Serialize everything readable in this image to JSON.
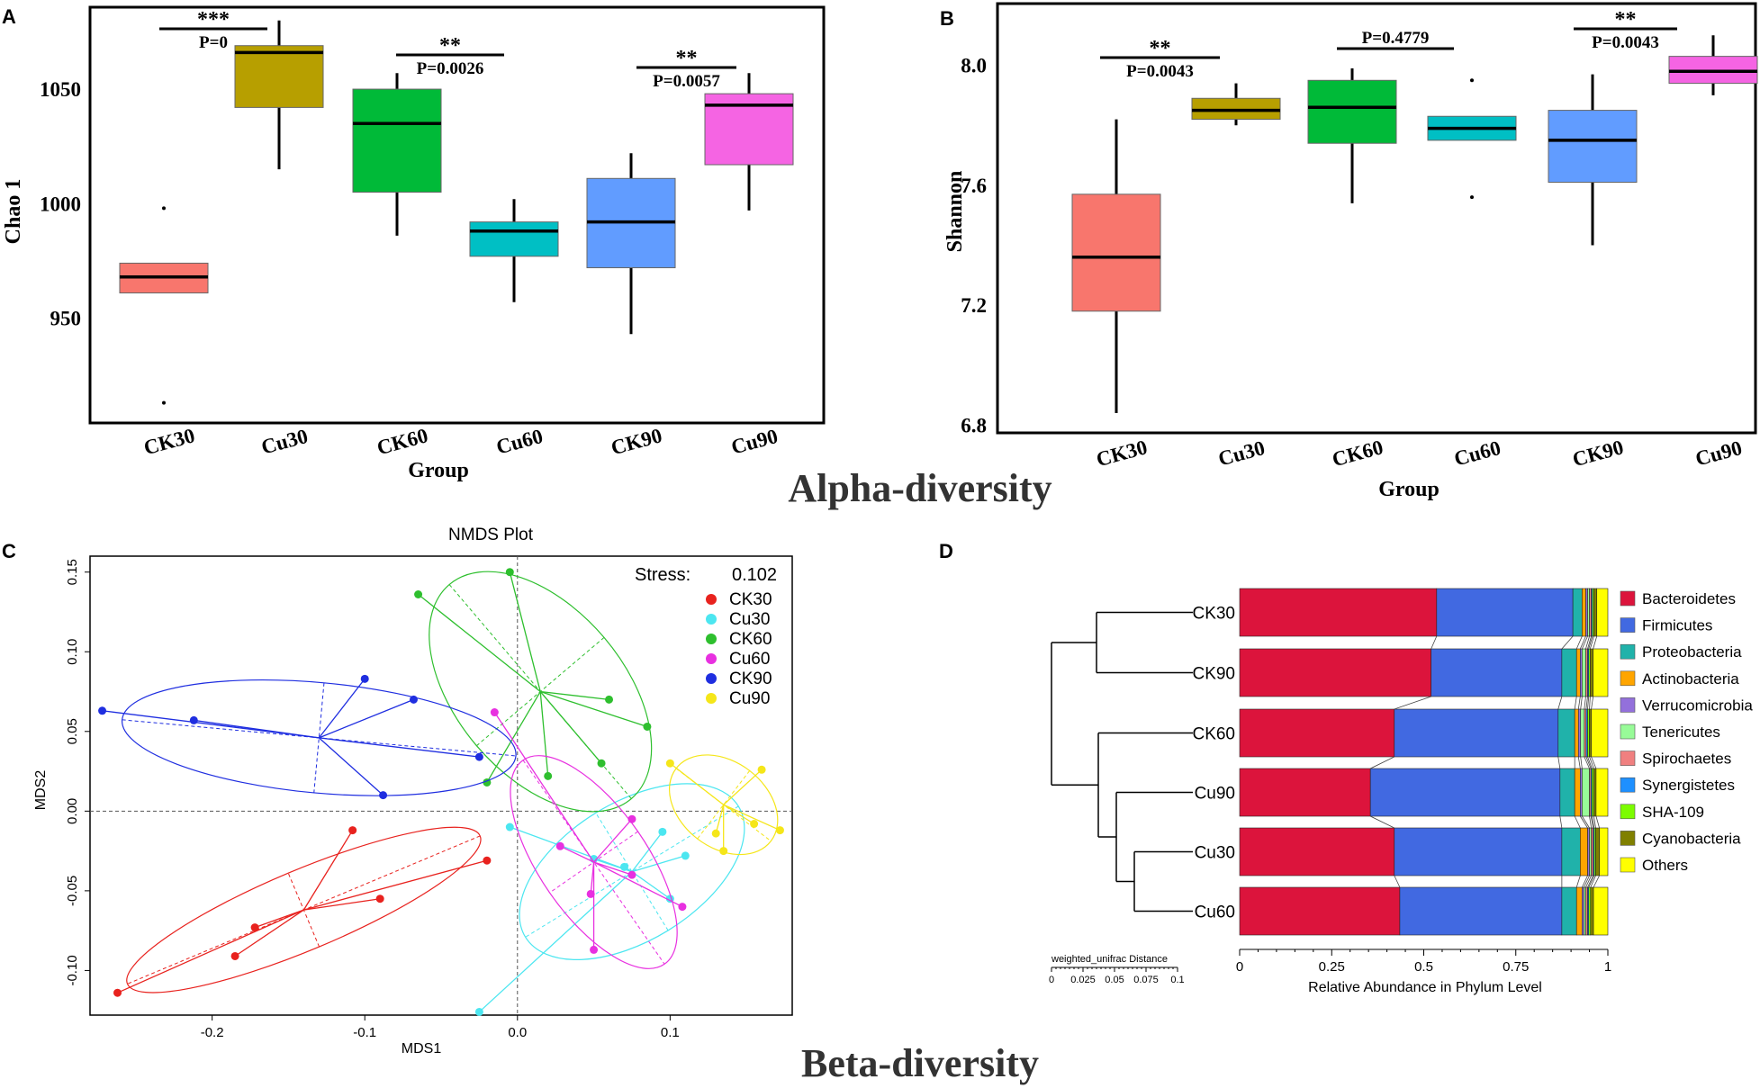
{
  "figure": {
    "section_alpha": "Alpha-diversity",
    "section_beta": "Beta-diversity"
  },
  "chart_data": [
    {
      "panel": "A",
      "type": "box",
      "xlabel": "Group",
      "ylabel": "Chao 1",
      "yticks": [
        950,
        1000,
        1050
      ],
      "ylim": [
        905,
        1085
      ],
      "groups": [
        {
          "name": "CK30",
          "color": "#f8766d",
          "q1": 961,
          "median": 968,
          "q3": 974,
          "whisker_low": 961,
          "whisker_high": 974,
          "outliers": [
            998,
            913
          ]
        },
        {
          "name": "Cu30",
          "color": "#b79f00",
          "q1": 1042,
          "median": 1066,
          "q3": 1069,
          "whisker_low": 1015,
          "whisker_high": 1080,
          "outliers": []
        },
        {
          "name": "CK60",
          "color": "#00ba38",
          "q1": 1005,
          "median": 1035,
          "q3": 1050,
          "whisker_low": 986,
          "whisker_high": 1057,
          "outliers": []
        },
        {
          "name": "Cu60",
          "color": "#00bfc4",
          "q1": 977,
          "median": 988,
          "q3": 992,
          "whisker_low": 957,
          "whisker_high": 1002,
          "outliers": []
        },
        {
          "name": "CK90",
          "color": "#619cff",
          "q1": 972,
          "median": 992,
          "q3": 1011,
          "whisker_low": 943,
          "whisker_high": 1022,
          "outliers": []
        },
        {
          "name": "Cu90",
          "color": "#f564e3",
          "q1": 1017,
          "median": 1043,
          "q3": 1048,
          "whisker_low": 997,
          "whisker_high": 1057,
          "outliers": []
        }
      ],
      "comparisons": [
        {
          "pair": [
            "CK30",
            "Cu30"
          ],
          "stars": "***",
          "p": "P=0"
        },
        {
          "pair": [
            "CK60",
            "Cu60"
          ],
          "stars": "**",
          "p": "P=0.0026"
        },
        {
          "pair": [
            "CK90",
            "Cu90"
          ],
          "stars": "**",
          "p": "P=0.0057"
        }
      ]
    },
    {
      "panel": "B",
      "type": "box",
      "xlabel": "Group",
      "ylabel": "Shannon",
      "yticks": [
        "6.8",
        "7.2",
        "7.6",
        "8.0"
      ],
      "ylim": [
        6.78,
        8.2
      ],
      "groups": [
        {
          "name": "CK30",
          "color": "#f8766d",
          "q1": 7.18,
          "median": 7.36,
          "q3": 7.57,
          "whisker_low": 6.84,
          "whisker_high": 7.82,
          "outliers": []
        },
        {
          "name": "Cu30",
          "color": "#b79f00",
          "q1": 7.82,
          "median": 7.85,
          "q3": 7.89,
          "whisker_low": 7.8,
          "whisker_high": 7.94,
          "outliers": []
        },
        {
          "name": "CK60",
          "color": "#00ba38",
          "q1": 7.74,
          "median": 7.86,
          "q3": 7.95,
          "whisker_low": 7.54,
          "whisker_high": 7.99,
          "outliers": []
        },
        {
          "name": "Cu60",
          "color": "#00bfc4",
          "q1": 7.75,
          "median": 7.79,
          "q3": 7.83,
          "whisker_low": 7.75,
          "whisker_high": 7.83,
          "outliers": [
            7.95,
            7.56
          ]
        },
        {
          "name": "CK90",
          "color": "#619cff",
          "q1": 7.61,
          "median": 7.75,
          "q3": 7.85,
          "whisker_low": 7.4,
          "whisker_high": 7.97,
          "outliers": []
        },
        {
          "name": "Cu90",
          "color": "#f564e3",
          "q1": 7.94,
          "median": 7.98,
          "q3": 8.03,
          "whisker_low": 7.9,
          "whisker_high": 8.1,
          "outliers": []
        }
      ],
      "comparisons": [
        {
          "pair": [
            "CK30",
            "Cu30"
          ],
          "stars": "**",
          "p": "P=0.0043"
        },
        {
          "pair": [
            "CK60",
            "Cu60"
          ],
          "stars": "",
          "p": "P=0.4779"
        },
        {
          "pair": [
            "CK90",
            "Cu90"
          ],
          "stars": "**",
          "p": "P=0.0043"
        }
      ]
    },
    {
      "panel": "C",
      "type": "scatter",
      "title": "NMDS Plot",
      "stress_label": "Stress:",
      "stress": "0.102",
      "xlabel": "MDS1",
      "ylabel": "MDS2",
      "xlim": [
        -0.28,
        0.18
      ],
      "ylim": [
        -0.128,
        0.16
      ],
      "xticks": [
        "-0.2",
        "-0.1",
        "0.0",
        "0.1"
      ],
      "yticks": [
        "-0.10",
        "-0.05",
        "0.00",
        "0.05",
        "0.10",
        "0.15"
      ],
      "groups": [
        {
          "name": "CK30",
          "color": "#e8221e",
          "centroid": [
            -0.14,
            -0.062
          ],
          "points": [
            [
              -0.262,
              -0.114
            ],
            [
              -0.185,
              -0.091
            ],
            [
              -0.172,
              -0.073
            ],
            [
              -0.108,
              -0.012
            ],
            [
              -0.09,
              -0.055
            ],
            [
              -0.02,
              -0.031
            ]
          ]
        },
        {
          "name": "Cu30",
          "color": "#4ce6f0",
          "centroid": [
            0.075,
            -0.038
          ],
          "points": [
            [
              -0.025,
              -0.126
            ],
            [
              -0.005,
              -0.01
            ],
            [
              0.05,
              -0.03
            ],
            [
              0.07,
              -0.035
            ],
            [
              0.095,
              -0.013
            ],
            [
              0.1,
              -0.055
            ],
            [
              0.11,
              -0.028
            ]
          ]
        },
        {
          "name": "CK60",
          "color": "#2ebf2e",
          "centroid": [
            0.015,
            0.075
          ],
          "points": [
            [
              -0.065,
              0.136
            ],
            [
              -0.005,
              0.15
            ],
            [
              0.06,
              0.07
            ],
            [
              0.085,
              0.053
            ],
            [
              0.055,
              0.03
            ],
            [
              0.02,
              0.022
            ],
            [
              -0.02,
              0.018
            ]
          ]
        },
        {
          "name": "Cu60",
          "color": "#e830e0",
          "centroid": [
            0.05,
            -0.032
          ],
          "points": [
            [
              -0.015,
              0.062
            ],
            [
              0.028,
              -0.022
            ],
            [
              0.048,
              -0.052
            ],
            [
              0.05,
              -0.087
            ],
            [
              0.075,
              -0.04
            ],
            [
              0.075,
              -0.005
            ],
            [
              0.108,
              -0.06
            ]
          ]
        },
        {
          "name": "CK90",
          "color": "#1f2ee0",
          "centroid": [
            -0.13,
            0.046
          ],
          "points": [
            [
              -0.272,
              0.063
            ],
            [
              -0.212,
              0.057
            ],
            [
              -0.1,
              0.083
            ],
            [
              -0.068,
              0.07
            ],
            [
              -0.025,
              0.034
            ],
            [
              -0.088,
              0.01
            ]
          ]
        },
        {
          "name": "Cu90",
          "color": "#f5e619",
          "centroid": [
            0.135,
            0.004
          ],
          "points": [
            [
              0.1,
              0.03
            ],
            [
              0.16,
              0.026
            ],
            [
              0.135,
              -0.025
            ],
            [
              0.155,
              -0.008
            ],
            [
              0.172,
              -0.012
            ],
            [
              0.13,
              -0.014
            ]
          ]
        }
      ]
    },
    {
      "panel": "D",
      "type": "stacked-bar",
      "xlabel": "Relative Abundance in Phylum Level",
      "xticks": [
        "0",
        "0.25",
        "0.5",
        "0.75",
        "1"
      ],
      "scale_label": "weighted_unifrac Distance",
      "scale_ticks": [
        "0",
        "0.025",
        "0.05",
        "0.075",
        "0.1"
      ],
      "categories": [
        "CK30",
        "CK90",
        "CK60",
        "Cu90",
        "Cu30",
        "Cu60"
      ],
      "series": [
        {
          "name": "Bacteroidetes",
          "color": "#dc143c",
          "values": [
            0.535,
            0.52,
            0.42,
            0.355,
            0.42,
            0.435
          ]
        },
        {
          "name": "Firmicutes",
          "color": "#4169e1",
          "values": [
            0.37,
            0.355,
            0.445,
            0.515,
            0.455,
            0.44
          ]
        },
        {
          "name": "Proteobacteria",
          "color": "#20b2aa",
          "values": [
            0.025,
            0.04,
            0.045,
            0.04,
            0.05,
            0.04
          ]
        },
        {
          "name": "Actinobacteria",
          "color": "#ffa500",
          "values": [
            0.01,
            0.01,
            0.01,
            0.015,
            0.02,
            0.015
          ]
        },
        {
          "name": "Verrucomicrobia",
          "color": "#9370db",
          "values": [
            0.005,
            0.005,
            0.006,
            0.005,
            0.005,
            0.005
          ]
        },
        {
          "name": "Tenericutes",
          "color": "#98fb98",
          "values": [
            0.005,
            0.01,
            0.01,
            0.02,
            0.005,
            0.005
          ]
        },
        {
          "name": "Spirochaetes",
          "color": "#f08080",
          "values": [
            0.005,
            0.005,
            0.005,
            0.004,
            0.005,
            0.005
          ]
        },
        {
          "name": "Synergistetes",
          "color": "#1e90ff",
          "values": [
            0.003,
            0.003,
            0.004,
            0.003,
            0.003,
            0.003
          ]
        },
        {
          "name": "SHA-109",
          "color": "#7cfc00",
          "values": [
            0.004,
            0.004,
            0.005,
            0.005,
            0.004,
            0.005
          ]
        },
        {
          "name": "Cyanobacteria",
          "color": "#808000",
          "values": [
            0.008,
            0.008,
            0.005,
            0.006,
            0.01,
            0.008
          ]
        },
        {
          "name": "Others",
          "color": "#ffff00",
          "values": [
            0.03,
            0.04,
            0.045,
            0.032,
            0.023,
            0.039
          ]
        }
      ]
    }
  ]
}
